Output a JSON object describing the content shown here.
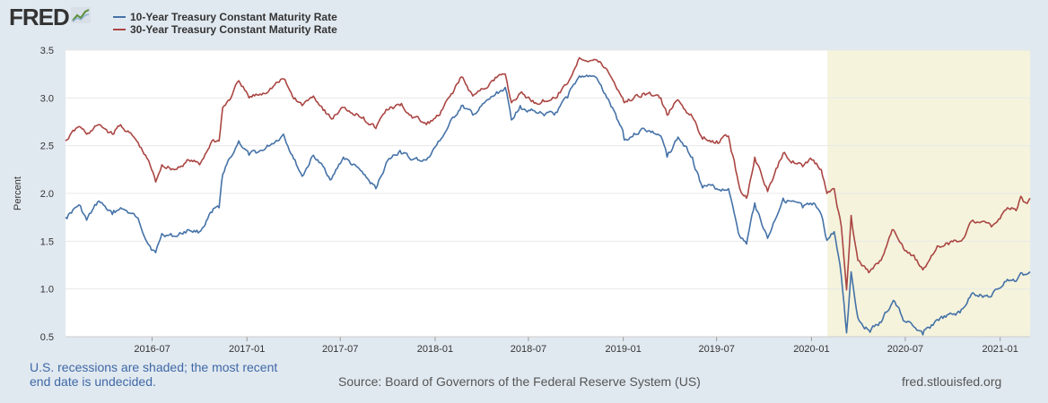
{
  "logo": {
    "text": "FRED",
    "icon": "line-chart-icon"
  },
  "legend": [
    {
      "label": "10-Year Treasury Constant Maturity Rate",
      "color": "#4572a7"
    },
    {
      "label": "30-Year Treasury Constant Maturity Rate",
      "color": "#aa4643"
    }
  ],
  "footer": {
    "note": "U.S. recessions are shaded; the most recent end date is undecided.",
    "source": "Source: Board of Governors of the Federal Reserve System (US)",
    "site": "fred.stlouisfed.org"
  },
  "colors": {
    "series_10y": "#4572a7",
    "series_30y": "#aa4643",
    "recession": "#f5f3dc",
    "grid": "#e8e8e8"
  },
  "chart_data": {
    "type": "line",
    "title": "",
    "xlabel": "",
    "ylabel": "Percent",
    "ylim": [
      0.5,
      3.5
    ],
    "yticks": [
      0.5,
      1.0,
      1.5,
      2.0,
      2.5,
      3.0,
      3.5
    ],
    "ytick_labels": [
      "0.5",
      "1.0",
      "1.5",
      "2.0",
      "2.5",
      "3.0",
      "3.5"
    ],
    "xlim": [
      "2016-01-15",
      "2021-02-28"
    ],
    "xticks": [
      "2016-07",
      "2017-01",
      "2017-07",
      "2018-01",
      "2018-07",
      "2019-01",
      "2019-07",
      "2020-01",
      "2020-07",
      "2021-01"
    ],
    "grid": true,
    "legend_position": "top-left",
    "recessions": [
      {
        "start": "2020-02-01",
        "end": "2021-02-28"
      }
    ],
    "series": [
      {
        "name": "10-Year Treasury Constant Maturity Rate",
        "color": "#4572a7",
        "points": [
          [
            "2016-01-15",
            1.75
          ],
          [
            "2016-02-10",
            1.88
          ],
          [
            "2016-02-25",
            1.72
          ],
          [
            "2016-03-20",
            1.92
          ],
          [
            "2016-04-15",
            1.78
          ],
          [
            "2016-05-01",
            1.85
          ],
          [
            "2016-06-01",
            1.75
          ],
          [
            "2016-06-27",
            1.45
          ],
          [
            "2016-07-08",
            1.38
          ],
          [
            "2016-07-20",
            1.58
          ],
          [
            "2016-08-15",
            1.55
          ],
          [
            "2016-09-10",
            1.62
          ],
          [
            "2016-10-01",
            1.6
          ],
          [
            "2016-10-25",
            1.8
          ],
          [
            "2016-11-08",
            1.85
          ],
          [
            "2016-11-15",
            2.2
          ],
          [
            "2016-12-01",
            2.38
          ],
          [
            "2016-12-16",
            2.55
          ],
          [
            "2017-01-05",
            2.4
          ],
          [
            "2017-02-01",
            2.45
          ],
          [
            "2017-03-13",
            2.62
          ],
          [
            "2017-03-30",
            2.4
          ],
          [
            "2017-04-18",
            2.18
          ],
          [
            "2017-05-10",
            2.4
          ],
          [
            "2017-06-14",
            2.15
          ],
          [
            "2017-07-07",
            2.38
          ],
          [
            "2017-08-15",
            2.2
          ],
          [
            "2017-09-08",
            2.05
          ],
          [
            "2017-09-28",
            2.32
          ],
          [
            "2017-10-25",
            2.45
          ],
          [
            "2017-11-15",
            2.35
          ],
          [
            "2017-12-15",
            2.35
          ],
          [
            "2018-01-10",
            2.55
          ],
          [
            "2018-02-21",
            2.92
          ],
          [
            "2018-03-15",
            2.82
          ],
          [
            "2018-04-25",
            3.02
          ],
          [
            "2018-05-17",
            3.11
          ],
          [
            "2018-05-29",
            2.77
          ],
          [
            "2018-06-15",
            2.92
          ],
          [
            "2018-07-15",
            2.85
          ],
          [
            "2018-08-20",
            2.82
          ],
          [
            "2018-09-15",
            3.0
          ],
          [
            "2018-10-08",
            3.23
          ],
          [
            "2018-11-08",
            3.22
          ],
          [
            "2018-11-30",
            3.0
          ],
          [
            "2018-12-31",
            2.66
          ],
          [
            "2019-01-03",
            2.56
          ],
          [
            "2019-02-10",
            2.68
          ],
          [
            "2019-03-15",
            2.6
          ],
          [
            "2019-03-27",
            2.38
          ],
          [
            "2019-04-17",
            2.59
          ],
          [
            "2019-05-15",
            2.38
          ],
          [
            "2019-06-01",
            2.1
          ],
          [
            "2019-07-01",
            2.05
          ],
          [
            "2019-07-24",
            2.05
          ],
          [
            "2019-08-15",
            1.55
          ],
          [
            "2019-08-28",
            1.47
          ],
          [
            "2019-09-13",
            1.9
          ],
          [
            "2019-10-08",
            1.53
          ],
          [
            "2019-11-07",
            1.95
          ],
          [
            "2019-12-15",
            1.85
          ],
          [
            "2020-01-02",
            1.88
          ],
          [
            "2020-01-20",
            1.78
          ],
          [
            "2020-01-31",
            1.51
          ],
          [
            "2020-02-14",
            1.6
          ],
          [
            "2020-02-28",
            1.13
          ],
          [
            "2020-03-09",
            0.54
          ],
          [
            "2020-03-18",
            1.18
          ],
          [
            "2020-03-31",
            0.7
          ],
          [
            "2020-04-21",
            0.57
          ],
          [
            "2020-05-15",
            0.65
          ],
          [
            "2020-06-08",
            0.88
          ],
          [
            "2020-06-30",
            0.66
          ],
          [
            "2020-07-15",
            0.62
          ],
          [
            "2020-08-04",
            0.52
          ],
          [
            "2020-09-01",
            0.68
          ],
          [
            "2020-10-15",
            0.75
          ],
          [
            "2020-11-09",
            0.96
          ],
          [
            "2020-12-15",
            0.92
          ],
          [
            "2021-01-15",
            1.1
          ],
          [
            "2021-02-01",
            1.08
          ],
          [
            "2021-02-10",
            1.17
          ],
          [
            "2021-02-20",
            1.15
          ],
          [
            "2021-02-28",
            1.18
          ]
        ]
      },
      {
        "name": "30-Year Treasury Constant Maturity Rate",
        "color": "#aa4643",
        "points": [
          [
            "2016-01-15",
            2.55
          ],
          [
            "2016-02-10",
            2.7
          ],
          [
            "2016-02-25",
            2.62
          ],
          [
            "2016-03-20",
            2.72
          ],
          [
            "2016-04-15",
            2.62
          ],
          [
            "2016-05-01",
            2.72
          ],
          [
            "2016-06-01",
            2.55
          ],
          [
            "2016-06-27",
            2.3
          ],
          [
            "2016-07-08",
            2.12
          ],
          [
            "2016-07-20",
            2.3
          ],
          [
            "2016-08-15",
            2.25
          ],
          [
            "2016-09-10",
            2.35
          ],
          [
            "2016-10-01",
            2.3
          ],
          [
            "2016-10-25",
            2.55
          ],
          [
            "2016-11-08",
            2.55
          ],
          [
            "2016-11-15",
            2.9
          ],
          [
            "2016-12-01",
            3.0
          ],
          [
            "2016-12-16",
            3.18
          ],
          [
            "2017-01-05",
            3.0
          ],
          [
            "2017-02-01",
            3.05
          ],
          [
            "2017-03-13",
            3.2
          ],
          [
            "2017-03-30",
            3.02
          ],
          [
            "2017-04-18",
            2.92
          ],
          [
            "2017-05-10",
            3.02
          ],
          [
            "2017-06-14",
            2.78
          ],
          [
            "2017-07-07",
            2.9
          ],
          [
            "2017-08-15",
            2.8
          ],
          [
            "2017-09-08",
            2.68
          ],
          [
            "2017-09-28",
            2.88
          ],
          [
            "2017-10-25",
            2.92
          ],
          [
            "2017-11-15",
            2.82
          ],
          [
            "2017-12-15",
            2.72
          ],
          [
            "2018-01-10",
            2.82
          ],
          [
            "2018-02-21",
            3.22
          ],
          [
            "2018-03-15",
            3.02
          ],
          [
            "2018-04-25",
            3.18
          ],
          [
            "2018-05-17",
            3.25
          ],
          [
            "2018-05-29",
            2.95
          ],
          [
            "2018-06-15",
            3.05
          ],
          [
            "2018-07-15",
            2.95
          ],
          [
            "2018-08-20",
            3.0
          ],
          [
            "2018-09-15",
            3.15
          ],
          [
            "2018-10-08",
            3.42
          ],
          [
            "2018-11-08",
            3.4
          ],
          [
            "2018-11-30",
            3.3
          ],
          [
            "2018-12-31",
            3.0
          ],
          [
            "2019-01-03",
            2.95
          ],
          [
            "2019-02-10",
            3.05
          ],
          [
            "2019-03-15",
            3.0
          ],
          [
            "2019-03-27",
            2.82
          ],
          [
            "2019-04-17",
            2.98
          ],
          [
            "2019-05-15",
            2.8
          ],
          [
            "2019-06-01",
            2.6
          ],
          [
            "2019-07-01",
            2.55
          ],
          [
            "2019-07-24",
            2.6
          ],
          [
            "2019-08-15",
            2.05
          ],
          [
            "2019-08-28",
            1.95
          ],
          [
            "2019-09-13",
            2.38
          ],
          [
            "2019-10-08",
            2.02
          ],
          [
            "2019-11-07",
            2.42
          ],
          [
            "2019-12-15",
            2.28
          ],
          [
            "2020-01-02",
            2.35
          ],
          [
            "2020-01-20",
            2.25
          ],
          [
            "2020-01-31",
            2.0
          ],
          [
            "2020-02-14",
            2.05
          ],
          [
            "2020-02-28",
            1.65
          ],
          [
            "2020-03-09",
            0.99
          ],
          [
            "2020-03-18",
            1.77
          ],
          [
            "2020-03-31",
            1.3
          ],
          [
            "2020-04-21",
            1.17
          ],
          [
            "2020-05-15",
            1.3
          ],
          [
            "2020-06-08",
            1.62
          ],
          [
            "2020-06-30",
            1.4
          ],
          [
            "2020-07-15",
            1.35
          ],
          [
            "2020-08-04",
            1.2
          ],
          [
            "2020-09-01",
            1.45
          ],
          [
            "2020-10-15",
            1.5
          ],
          [
            "2020-11-09",
            1.72
          ],
          [
            "2020-12-15",
            1.65
          ],
          [
            "2021-01-15",
            1.85
          ],
          [
            "2021-02-01",
            1.82
          ],
          [
            "2021-02-10",
            1.97
          ],
          [
            "2021-02-20",
            1.9
          ],
          [
            "2021-02-28",
            1.95
          ]
        ]
      }
    ]
  }
}
